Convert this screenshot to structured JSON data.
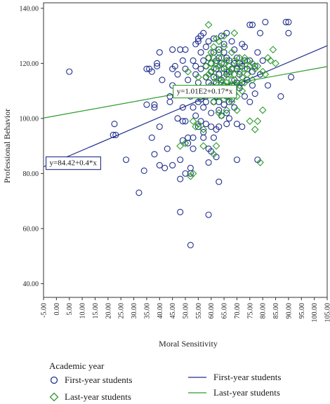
{
  "chart_data": {
    "type": "scatter",
    "xlabel": "Moral Sensitivity",
    "ylabel": "Professional Behavior",
    "xlim": [
      -5,
      105
    ],
    "ylim": [
      35,
      142
    ],
    "x_ticks": [
      "-5.00",
      "0.00",
      "5.00",
      "10.00",
      "15.00",
      "20.00",
      "25.00",
      "30.00",
      "35.00",
      "40.00",
      "45.00",
      "50.00",
      "55.00",
      "60.00",
      "65.00",
      "70.00",
      "75.00",
      "80.00",
      "85.00",
      "90.00",
      "95.00",
      "100.00",
      "105.00"
    ],
    "x_tick_values": [
      -5,
      0,
      5,
      10,
      15,
      20,
      25,
      30,
      35,
      40,
      45,
      50,
      55,
      60,
      65,
      70,
      75,
      80,
      85,
      90,
      95,
      100,
      105
    ],
    "y_ticks": [
      "40.00",
      "60.00",
      "80.00",
      "100.00",
      "120.00",
      "140.00"
    ],
    "y_tick_values": [
      40,
      60,
      80,
      100,
      120,
      140
    ],
    "grid": false,
    "legend": {
      "title": "Academic year",
      "position": "bottom",
      "entries": [
        {
          "label": "First-year students",
          "kind": "marker",
          "shape": "circle",
          "color": "#1f2e8c"
        },
        {
          "label": "Last-year students",
          "kind": "marker",
          "shape": "diamond",
          "color": "#2e9b2e"
        },
        {
          "label": "First-year students",
          "kind": "line",
          "color": "#1f2e8c"
        },
        {
          "label": "Last-year students",
          "kind": "line",
          "color": "#2e9b2e"
        }
      ]
    },
    "fit_lines": [
      {
        "series": "First-year students",
        "intercept": 84.42,
        "slope": 0.4,
        "label": "y=84.42+0.4*x",
        "color": "#1f2e8c",
        "label_at": [
          6.5,
          84
        ]
      },
      {
        "series": "Last-year students",
        "intercept": 101,
        "slope": 0.17,
        "label": "y=1.01E2+0.17*x",
        "color": "#2e9b2e",
        "label_at": [
          57.5,
          110
        ]
      }
    ],
    "series": [
      {
        "name": "First-year students",
        "marker": "circle",
        "color": "#1f2e8c",
        "points": [
          [
            5,
            117
          ],
          [
            22,
            94
          ],
          [
            22.5,
            98
          ],
          [
            23,
            94
          ],
          [
            27,
            85
          ],
          [
            32,
            73
          ],
          [
            34,
            81
          ],
          [
            35,
            105
          ],
          [
            35,
            118
          ],
          [
            36,
            118
          ],
          [
            37,
            117
          ],
          [
            37,
            93
          ],
          [
            38,
            87
          ],
          [
            38,
            104
          ],
          [
            38,
            105
          ],
          [
            39,
            120
          ],
          [
            39,
            119
          ],
          [
            40,
            83
          ],
          [
            40,
            124
          ],
          [
            40,
            97
          ],
          [
            41,
            114
          ],
          [
            42,
            82
          ],
          [
            43,
            89
          ],
          [
            44,
            108
          ],
          [
            44,
            106
          ],
          [
            45,
            112
          ],
          [
            45,
            118
          ],
          [
            45,
            125
          ],
          [
            45,
            83
          ],
          [
            46,
            119
          ],
          [
            47,
            116
          ],
          [
            47,
            100
          ],
          [
            48,
            125
          ],
          [
            48,
            85
          ],
          [
            48,
            78
          ],
          [
            48,
            66
          ],
          [
            49,
            104
          ],
          [
            49,
            99
          ],
          [
            49,
            92
          ],
          [
            49,
            121
          ],
          [
            50,
            125
          ],
          [
            50,
            99
          ],
          [
            50,
            118
          ],
          [
            50,
            80
          ],
          [
            51,
            114
          ],
          [
            51,
            93
          ],
          [
            51,
            91
          ],
          [
            52,
            108
          ],
          [
            52,
            54
          ],
          [
            52,
            82
          ],
          [
            52,
            80
          ],
          [
            53,
            121
          ],
          [
            53,
            104
          ],
          [
            53,
            93
          ],
          [
            53,
            89
          ],
          [
            54,
            127
          ],
          [
            54,
            119
          ],
          [
            54,
            116
          ],
          [
            54,
            101
          ],
          [
            54,
            111
          ],
          [
            55,
            128
          ],
          [
            55,
            129
          ],
          [
            55,
            113
          ],
          [
            55,
            106
          ],
          [
            55,
            97
          ],
          [
            56,
            130
          ],
          [
            56,
            124
          ],
          [
            56,
            118
          ],
          [
            56,
            107
          ],
          [
            56,
            99
          ],
          [
            57,
            131
          ],
          [
            57,
            121
          ],
          [
            57,
            110
          ],
          [
            57,
            104
          ],
          [
            57,
            95
          ],
          [
            57,
            93
          ],
          [
            58,
            126
          ],
          [
            58,
            119
          ],
          [
            58,
            115
          ],
          [
            58,
            108
          ],
          [
            58,
            106
          ],
          [
            58,
            98
          ],
          [
            59,
            128
          ],
          [
            59,
            122
          ],
          [
            59,
            113
          ],
          [
            59,
            109
          ],
          [
            59,
            89
          ],
          [
            59,
            84
          ],
          [
            59,
            65
          ],
          [
            60,
            120
          ],
          [
            60,
            117
          ],
          [
            60,
            112
          ],
          [
            60,
            102
          ],
          [
            60,
            97
          ],
          [
            60,
            88
          ],
          [
            61,
            129
          ],
          [
            61,
            124
          ],
          [
            61,
            115
          ],
          [
            61,
            110
          ],
          [
            61,
            106
          ],
          [
            61,
            93
          ],
          [
            62,
            121
          ],
          [
            62,
            118
          ],
          [
            62,
            113
          ],
          [
            62,
            108
          ],
          [
            62,
            96
          ],
          [
            62,
            86
          ],
          [
            63,
            125
          ],
          [
            63,
            122
          ],
          [
            63,
            116
          ],
          [
            63,
            106
          ],
          [
            63,
            103
          ],
          [
            63,
            97
          ],
          [
            63,
            77
          ],
          [
            64,
            130
          ],
          [
            64,
            120
          ],
          [
            64,
            114
          ],
          [
            64,
            109
          ],
          [
            64,
            101
          ],
          [
            65,
            127
          ],
          [
            65,
            124
          ],
          [
            65,
            118
          ],
          [
            65,
            112
          ],
          [
            65,
            105
          ],
          [
            66,
            131
          ],
          [
            66,
            122
          ],
          [
            66,
            116
          ],
          [
            66,
            108
          ],
          [
            66,
            102
          ],
          [
            66,
            98
          ],
          [
            67,
            121
          ],
          [
            67,
            117
          ],
          [
            67,
            110
          ],
          [
            67,
            106
          ],
          [
            67,
            100
          ],
          [
            68,
            128
          ],
          [
            68,
            118
          ],
          [
            68,
            112
          ],
          [
            68,
            107
          ],
          [
            69,
            125
          ],
          [
            69,
            120
          ],
          [
            69,
            114
          ],
          [
            69,
            109
          ],
          [
            69,
            104
          ],
          [
            70,
            122
          ],
          [
            70,
            118
          ],
          [
            70,
            113
          ],
          [
            70,
            98
          ],
          [
            70,
            85
          ],
          [
            71,
            120
          ],
          [
            71,
            116
          ],
          [
            71,
            111
          ],
          [
            72,
            127
          ],
          [
            72,
            119
          ],
          [
            72,
            113
          ],
          [
            72,
            97
          ],
          [
            73,
            126
          ],
          [
            73,
            121
          ],
          [
            73,
            108
          ],
          [
            74,
            118
          ],
          [
            74,
            114
          ],
          [
            75,
            134
          ],
          [
            75,
            121
          ],
          [
            75,
            106
          ],
          [
            76,
            134
          ],
          [
            76,
            117
          ],
          [
            76,
            112
          ],
          [
            77,
            119
          ],
          [
            77,
            109
          ],
          [
            78,
            124
          ],
          [
            78,
            85
          ],
          [
            79,
            131
          ],
          [
            79,
            116
          ],
          [
            80,
            121
          ],
          [
            81,
            135
          ],
          [
            82,
            112
          ],
          [
            87,
            108
          ],
          [
            89,
            135
          ],
          [
            90,
            131
          ],
          [
            90,
            135
          ],
          [
            91,
            115
          ]
        ]
      },
      {
        "name": "Last-year students",
        "marker": "diamond",
        "color": "#2e9b2e",
        "points": [
          [
            48,
            90
          ],
          [
            50,
            91
          ],
          [
            51,
            117
          ],
          [
            52,
            79
          ],
          [
            53,
            80
          ],
          [
            53,
            99
          ],
          [
            54,
            97
          ],
          [
            55,
            98
          ],
          [
            55,
            115
          ],
          [
            56,
            108
          ],
          [
            56,
            111
          ],
          [
            57,
            96
          ],
          [
            57,
            90
          ],
          [
            58,
            115
          ],
          [
            58,
            119
          ],
          [
            59,
            122
          ],
          [
            59,
            116
          ],
          [
            59,
            134
          ],
          [
            60,
            124
          ],
          [
            60,
            120
          ],
          [
            60,
            117
          ],
          [
            60,
            109
          ],
          [
            61,
            126
          ],
          [
            61,
            122
          ],
          [
            61,
            118
          ],
          [
            61,
            113
          ],
          [
            61,
            106
          ],
          [
            61,
            87
          ],
          [
            62,
            129
          ],
          [
            62,
            120
          ],
          [
            62,
            115
          ],
          [
            62,
            111
          ],
          [
            62,
            90
          ],
          [
            63,
            128
          ],
          [
            63,
            124
          ],
          [
            63,
            119
          ],
          [
            63,
            114
          ],
          [
            63,
            108
          ],
          [
            63,
            102
          ],
          [
            64,
            122
          ],
          [
            64,
            118
          ],
          [
            64,
            113
          ],
          [
            64,
            109
          ],
          [
            64,
            101
          ],
          [
            65,
            130
          ],
          [
            65,
            126
          ],
          [
            65,
            120
          ],
          [
            65,
            115
          ],
          [
            65,
            112
          ],
          [
            65,
            107
          ],
          [
            66,
            121
          ],
          [
            66,
            117
          ],
          [
            66,
            113
          ],
          [
            66,
            110
          ],
          [
            66,
            103
          ],
          [
            67,
            119
          ],
          [
            67,
            116
          ],
          [
            67,
            112
          ],
          [
            67,
            108
          ],
          [
            68,
            124
          ],
          [
            68,
            118
          ],
          [
            68,
            114
          ],
          [
            68,
            110
          ],
          [
            68,
            106
          ],
          [
            69,
            131
          ],
          [
            69,
            121
          ],
          [
            69,
            116
          ],
          [
            69,
            111
          ],
          [
            70,
            119
          ],
          [
            70,
            113
          ],
          [
            70,
            108
          ],
          [
            70,
            103
          ],
          [
            71,
            122
          ],
          [
            71,
            117
          ],
          [
            71,
            112
          ],
          [
            72,
            120
          ],
          [
            72,
            115
          ],
          [
            72,
            110
          ],
          [
            73,
            122
          ],
          [
            73,
            118
          ],
          [
            73,
            113
          ],
          [
            74,
            121
          ],
          [
            74,
            116
          ],
          [
            75,
            119
          ],
          [
            75,
            99
          ],
          [
            76,
            120
          ],
          [
            76,
            114
          ],
          [
            77,
            118
          ],
          [
            77,
            96
          ],
          [
            78,
            119
          ],
          [
            78,
            99
          ],
          [
            79,
            84
          ],
          [
            80,
            117
          ],
          [
            80,
            103
          ],
          [
            81,
            116
          ],
          [
            82,
            122
          ],
          [
            83,
            121
          ],
          [
            84,
            125
          ],
          [
            85,
            120
          ]
        ]
      }
    ]
  }
}
